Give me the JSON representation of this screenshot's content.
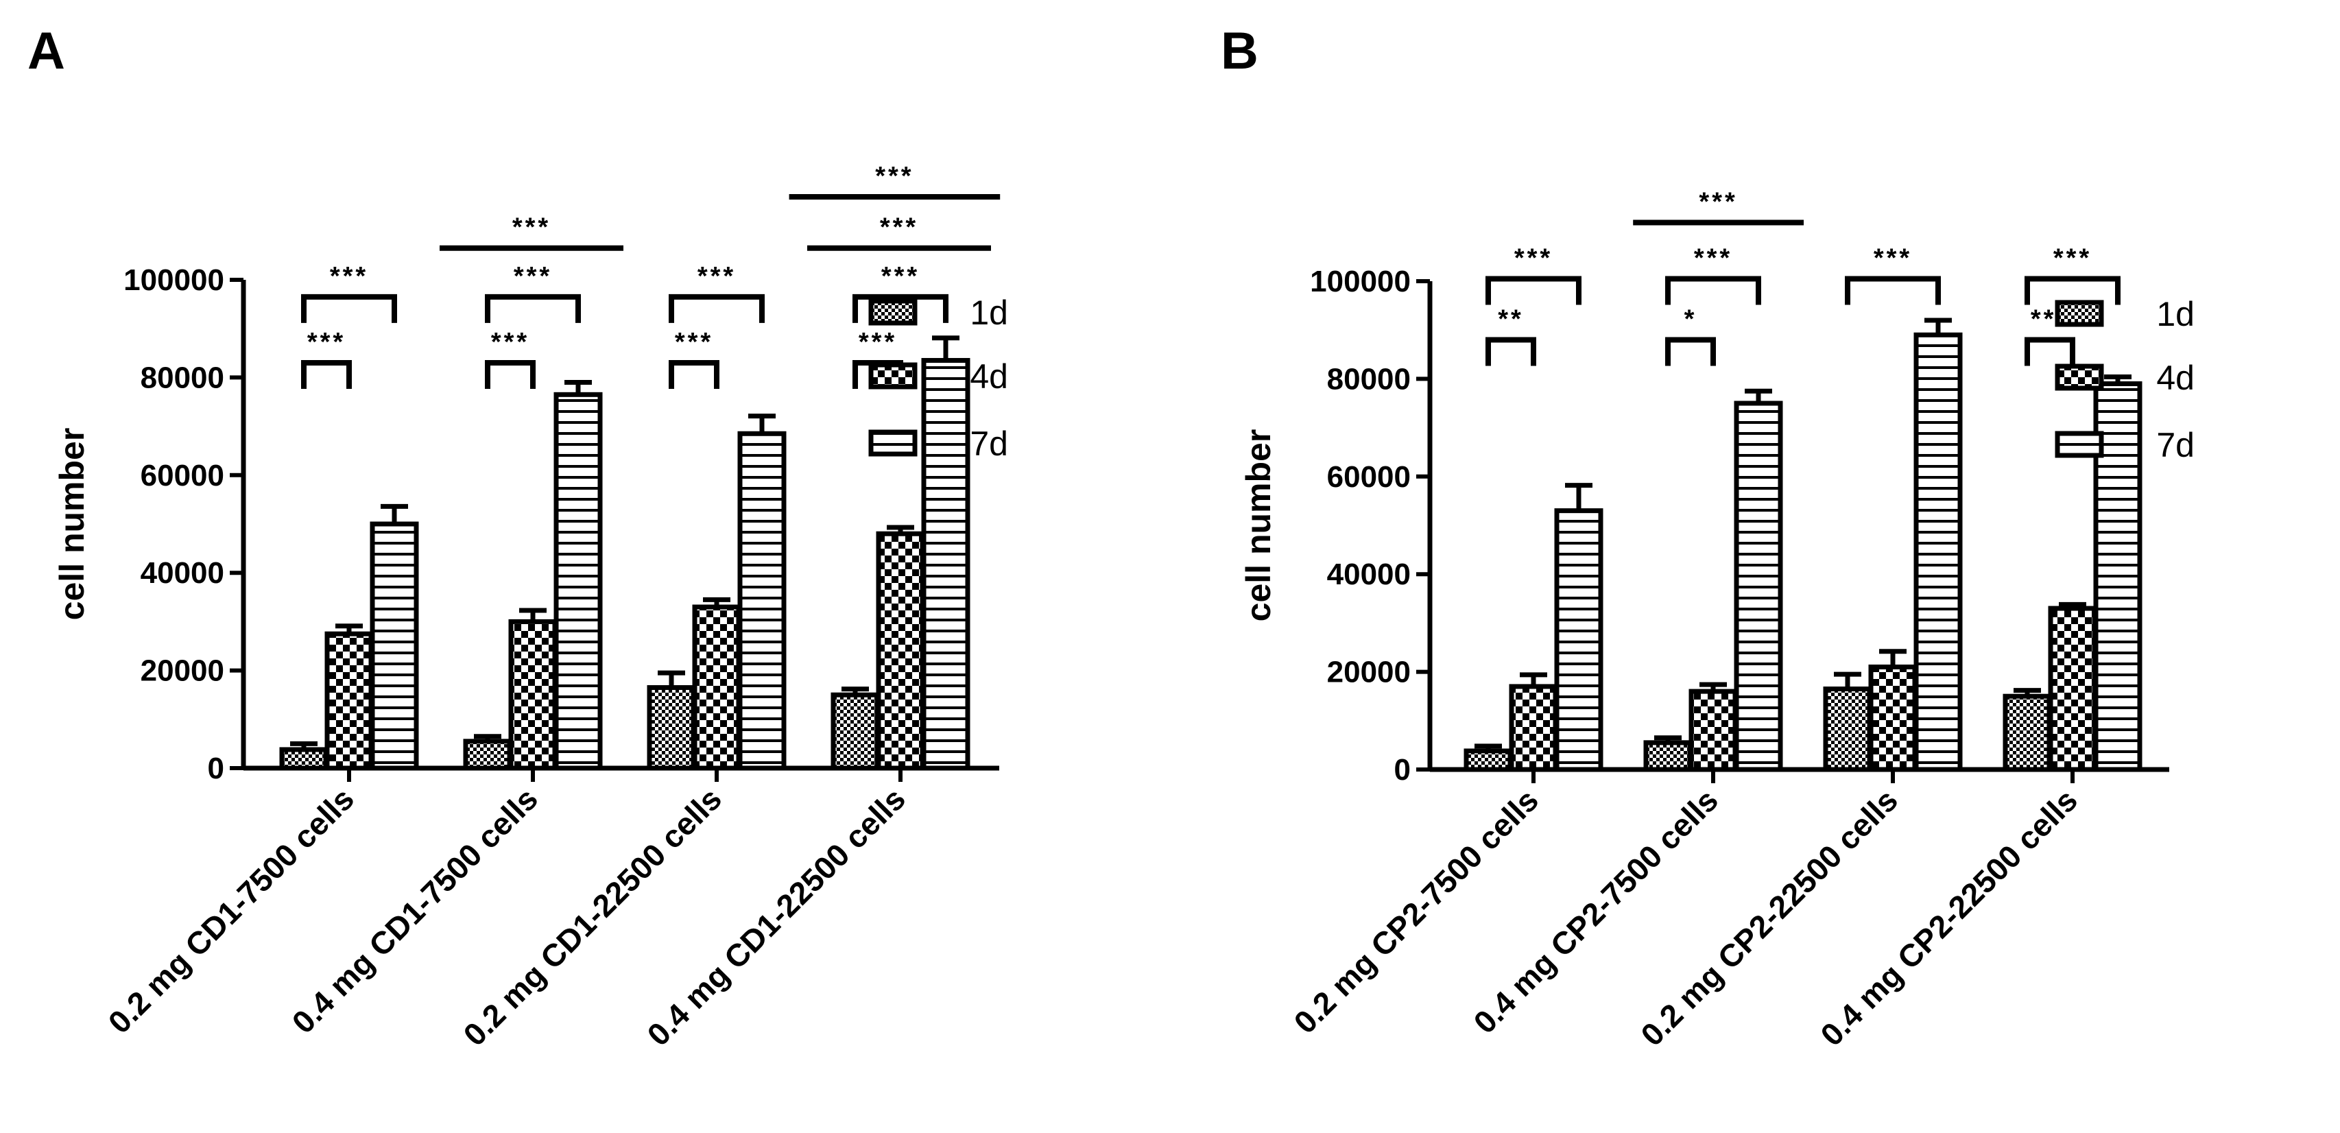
{
  "figure": {
    "panels": [
      "A",
      "B"
    ]
  },
  "colors": {
    "ink": "#000000",
    "background": "#ffffff"
  },
  "chart_data": [
    {
      "panel": "A",
      "type": "bar",
      "title": "",
      "xlabel": "",
      "ylabel": "cell number",
      "ylim": [
        0,
        100000
      ],
      "yticks": [
        0,
        20000,
        40000,
        60000,
        80000,
        100000
      ],
      "grid": false,
      "legend_position": "right",
      "categories": [
        "0.2 mg CD1-7500 cells",
        "0.4 mg CD1-7500 cells",
        "0.2 mg CD1-22500 cells",
        "0.4 mg CD1-22500 cells"
      ],
      "series": [
        {
          "name": "1d",
          "pattern": "checker-fine",
          "values": [
            3800,
            5500,
            16500,
            15000
          ],
          "errors": [
            1200,
            1000,
            3000,
            1200
          ]
        },
        {
          "name": "4d",
          "pattern": "checker-coarse",
          "values": [
            27500,
            30000,
            33000,
            48000
          ],
          "errors": [
            1600,
            2300,
            1500,
            1300
          ]
        },
        {
          "name": "7d",
          "pattern": "horizontal-lines",
          "values": [
            50000,
            76500,
            68500,
            83500
          ],
          "errors": [
            3600,
            2500,
            3600,
            4600
          ]
        }
      ],
      "significance": [
        {
          "label": "***",
          "from": [
            0,
            0
          ],
          "to": [
            0,
            1
          ],
          "level": 83000
        },
        {
          "label": "***",
          "from": [
            0,
            0
          ],
          "to": [
            0,
            2
          ],
          "level": 96500
        },
        {
          "label": "***",
          "from": [
            1,
            0
          ],
          "to": [
            1,
            1
          ],
          "level": 83000
        },
        {
          "label": "***",
          "from": [
            1,
            0
          ],
          "to": [
            1,
            2
          ],
          "level": 96500
        },
        {
          "label": "***",
          "from": [
            2,
            0
          ],
          "to": [
            2,
            1
          ],
          "level": 83000
        },
        {
          "label": "***",
          "from": [
            2,
            0
          ],
          "to": [
            2,
            2
          ],
          "level": 96500
        },
        {
          "label": "***",
          "from": [
            3,
            0
          ],
          "to": [
            3,
            1
          ],
          "level": 83000
        },
        {
          "label": "***",
          "from": [
            3,
            0
          ],
          "to": [
            3,
            2
          ],
          "level": 96500
        },
        {
          "label": "***",
          "from": [
            0,
            3
          ],
          "to": [
            1,
            3
          ],
          "level": 106500,
          "style": "line"
        },
        {
          "label": "***",
          "from": [
            2,
            3
          ],
          "to": [
            3,
            3
          ],
          "level": 106500,
          "style": "line"
        },
        {
          "label": "***",
          "from": [
            2,
            2.6
          ],
          "to": [
            3,
            3.2
          ],
          "level": 117000,
          "style": "line"
        }
      ]
    },
    {
      "panel": "B",
      "type": "bar",
      "title": "",
      "xlabel": "",
      "ylabel": "cell number",
      "ylim": [
        0,
        100000
      ],
      "yticks": [
        0,
        20000,
        40000,
        60000,
        80000,
        100000
      ],
      "grid": false,
      "legend_position": "right",
      "categories": [
        "0.2 mg CP2-7500 cells",
        "0.4 mg CP2-7500 cells",
        "0.2 mg CP2-22500 cells",
        "0.4 mg CP2-22500 cells"
      ],
      "series": [
        {
          "name": "1d",
          "pattern": "checker-fine",
          "values": [
            3800,
            5500,
            16500,
            15000
          ],
          "errors": [
            1000,
            1000,
            3000,
            1200
          ]
        },
        {
          "name": "4d",
          "pattern": "checker-coarse",
          "values": [
            17000,
            16000,
            21000,
            33000
          ],
          "errors": [
            2400,
            1400,
            3200,
            800
          ]
        },
        {
          "name": "7d",
          "pattern": "horizontal-lines",
          "values": [
            53000,
            75000,
            89000,
            79000
          ],
          "errors": [
            5200,
            2500,
            3000,
            1400
          ]
        }
      ],
      "significance": [
        {
          "label": "**",
          "from": [
            0,
            0
          ],
          "to": [
            0,
            1
          ],
          "level": 88000
        },
        {
          "label": "***",
          "from": [
            0,
            0
          ],
          "to": [
            0,
            2
          ],
          "level": 100500
        },
        {
          "label": "*",
          "from": [
            1,
            0
          ],
          "to": [
            1,
            1
          ],
          "level": 88000
        },
        {
          "label": "***",
          "from": [
            1,
            0
          ],
          "to": [
            1,
            2
          ],
          "level": 100500
        },
        {
          "label": "***",
          "from": [
            2,
            0
          ],
          "to": [
            2,
            2
          ],
          "level": 100500
        },
        {
          "label": "***",
          "from": [
            3,
            0
          ],
          "to": [
            3,
            1
          ],
          "level": 88000
        },
        {
          "label": "***",
          "from": [
            3,
            0
          ],
          "to": [
            3,
            2
          ],
          "level": 100500
        },
        {
          "label": "***",
          "from": [
            0,
            3.2
          ],
          "to": [
            1,
            3
          ],
          "level": 112000,
          "style": "line"
        }
      ]
    }
  ]
}
